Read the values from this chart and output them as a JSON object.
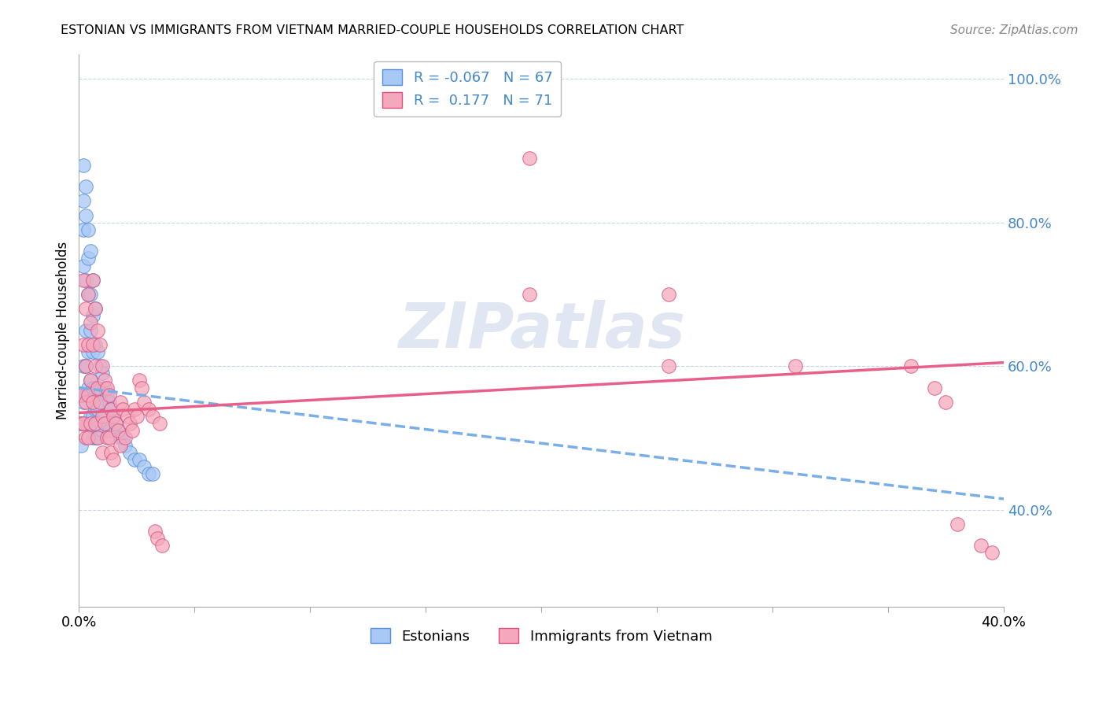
{
  "title": "ESTONIAN VS IMMIGRANTS FROM VIETNAM MARRIED-COUPLE HOUSEHOLDS CORRELATION CHART",
  "source": "Source: ZipAtlas.com",
  "ylabel": "Married-couple Households",
  "legend_label_1": "Estonians",
  "legend_label_2": "Immigrants from Vietnam",
  "r1": -0.067,
  "n1": 67,
  "r2": 0.177,
  "n2": 71,
  "color_estonian": "#a8c8f5",
  "color_vietnam": "#f5a8bc",
  "line_color_estonian": "#7aaee8",
  "line_color_vietnam": "#e8608a",
  "bg_color": "#ffffff",
  "grid_color": "#c8d4e8",
  "ytick_color": "#4488cc",
  "watermark": "ZIPatlas",
  "estonians_x": [
    0.001,
    0.001,
    0.001,
    0.002,
    0.002,
    0.002,
    0.002,
    0.002,
    0.002,
    0.003,
    0.003,
    0.003,
    0.003,
    0.003,
    0.003,
    0.003,
    0.004,
    0.004,
    0.004,
    0.004,
    0.004,
    0.004,
    0.005,
    0.005,
    0.005,
    0.005,
    0.005,
    0.006,
    0.006,
    0.006,
    0.006,
    0.006,
    0.006,
    0.007,
    0.007,
    0.007,
    0.007,
    0.007,
    0.008,
    0.008,
    0.008,
    0.008,
    0.009,
    0.009,
    0.009,
    0.01,
    0.01,
    0.01,
    0.011,
    0.011,
    0.012,
    0.012,
    0.013,
    0.013,
    0.014,
    0.015,
    0.016,
    0.017,
    0.018,
    0.019,
    0.02,
    0.022,
    0.024,
    0.026,
    0.028,
    0.03,
    0.032
  ],
  "estonians_y": [
    0.56,
    0.52,
    0.49,
    0.88,
    0.83,
    0.79,
    0.74,
    0.6,
    0.55,
    0.85,
    0.81,
    0.72,
    0.65,
    0.6,
    0.56,
    0.52,
    0.79,
    0.75,
    0.7,
    0.62,
    0.57,
    0.52,
    0.76,
    0.7,
    0.65,
    0.58,
    0.53,
    0.72,
    0.67,
    0.62,
    0.57,
    0.53,
    0.5,
    0.68,
    0.63,
    0.57,
    0.54,
    0.5,
    0.62,
    0.57,
    0.54,
    0.5,
    0.6,
    0.56,
    0.52,
    0.59,
    0.55,
    0.51,
    0.57,
    0.53,
    0.56,
    0.52,
    0.55,
    0.51,
    0.54,
    0.53,
    0.52,
    0.51,
    0.5,
    0.5,
    0.49,
    0.48,
    0.47,
    0.47,
    0.46,
    0.45,
    0.45
  ],
  "vietnam_x": [
    0.001,
    0.001,
    0.002,
    0.002,
    0.002,
    0.003,
    0.003,
    0.003,
    0.003,
    0.004,
    0.004,
    0.004,
    0.004,
    0.005,
    0.005,
    0.005,
    0.006,
    0.006,
    0.006,
    0.007,
    0.007,
    0.007,
    0.008,
    0.008,
    0.008,
    0.009,
    0.009,
    0.01,
    0.01,
    0.01,
    0.011,
    0.011,
    0.012,
    0.012,
    0.013,
    0.013,
    0.014,
    0.014,
    0.015,
    0.015,
    0.016,
    0.017,
    0.018,
    0.018,
    0.019,
    0.02,
    0.021,
    0.022,
    0.023,
    0.024,
    0.025,
    0.026,
    0.027,
    0.028,
    0.03,
    0.032,
    0.033,
    0.034,
    0.035,
    0.036,
    0.195,
    0.195,
    0.255,
    0.255,
    0.31,
    0.36,
    0.37,
    0.375,
    0.38,
    0.39,
    0.395
  ],
  "vietnam_y": [
    0.56,
    0.52,
    0.72,
    0.63,
    0.52,
    0.68,
    0.6,
    0.55,
    0.5,
    0.7,
    0.63,
    0.56,
    0.5,
    0.66,
    0.58,
    0.52,
    0.72,
    0.63,
    0.55,
    0.68,
    0.6,
    0.52,
    0.65,
    0.57,
    0.5,
    0.63,
    0.55,
    0.6,
    0.53,
    0.48,
    0.58,
    0.52,
    0.57,
    0.5,
    0.56,
    0.5,
    0.54,
    0.48,
    0.53,
    0.47,
    0.52,
    0.51,
    0.55,
    0.49,
    0.54,
    0.5,
    0.53,
    0.52,
    0.51,
    0.54,
    0.53,
    0.58,
    0.57,
    0.55,
    0.54,
    0.53,
    0.37,
    0.36,
    0.52,
    0.35,
    0.89,
    0.7,
    0.7,
    0.6,
    0.6,
    0.6,
    0.57,
    0.55,
    0.38,
    0.35,
    0.34
  ],
  "xmin": 0.0,
  "xmax": 0.4,
  "ymin": 0.265,
  "ymax": 1.035,
  "yticks": [
    0.4,
    0.6,
    0.8,
    1.0
  ],
  "ytick_labels": [
    "40.0%",
    "60.0%",
    "80.0%",
    "100.0%"
  ],
  "line_est_x0": 0.0,
  "line_est_y0": 0.57,
  "line_est_x1": 0.4,
  "line_est_y1": 0.415,
  "line_viet_x0": 0.0,
  "line_viet_y0": 0.535,
  "line_viet_x1": 0.4,
  "line_viet_y1": 0.605
}
